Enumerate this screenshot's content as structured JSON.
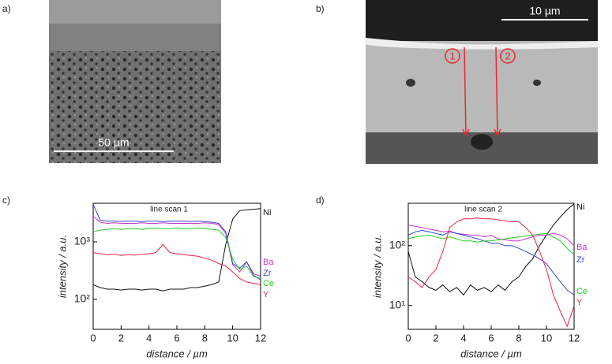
{
  "panels": {
    "a": {
      "label": "a)",
      "scale_bar": "50 µm"
    },
    "b": {
      "label": "b)",
      "scale_bar": "10 µm",
      "markers": [
        "1",
        "2"
      ]
    }
  },
  "chart_data": [
    {
      "type": "line",
      "panel_label": "c)",
      "title": "line scan 1",
      "x_label": "distance / µm",
      "y_label": "intensity / a.u.",
      "log_y": true,
      "x": [
        0,
        0.5,
        1,
        1.5,
        2,
        2.5,
        3,
        3.5,
        4,
        4.5,
        5,
        5.5,
        6,
        6.5,
        7,
        7.5,
        8,
        8.5,
        9,
        9.5,
        10,
        10.5,
        11,
        11.5,
        12
      ],
      "xlim": [
        0,
        12
      ],
      "xticks": [
        0,
        2,
        4,
        6,
        8,
        10,
        12
      ],
      "ylim": [
        30,
        4700
      ],
      "yticks": [
        {
          "value": 100,
          "label": "10²"
        },
        {
          "value": 1000,
          "label": "10³"
        }
      ],
      "series": [
        {
          "name": "Ni",
          "color": "#111111",
          "values": [
            180,
            160,
            150,
            150,
            145,
            150,
            150,
            145,
            150,
            150,
            140,
            150,
            150,
            150,
            160,
            160,
            170,
            180,
            200,
            900,
            2500,
            3500,
            3600,
            3700,
            3800
          ]
        },
        {
          "name": "Ba",
          "color": "#cc33cc",
          "values": [
            2800,
            2200,
            2100,
            2150,
            2100,
            2100,
            2100,
            2150,
            2100,
            2100,
            2150,
            2100,
            2100,
            2100,
            2100,
            2100,
            2150,
            2100,
            2000,
            1400,
            400,
            300,
            450,
            280,
            250
          ]
        },
        {
          "name": "Zr",
          "color": "#3344cc",
          "values": [
            4500,
            2400,
            2300,
            2300,
            2250,
            2300,
            2300,
            2250,
            2300,
            2300,
            2250,
            2300,
            2300,
            2300,
            2250,
            2300,
            2250,
            2200,
            2100,
            1500,
            420,
            350,
            450,
            260,
            220
          ]
        },
        {
          "name": "Ce",
          "color": "#22cc22",
          "values": [
            1500,
            1600,
            1650,
            1700,
            1650,
            1700,
            1700,
            1650,
            1700,
            1750,
            1700,
            1700,
            1750,
            1700,
            1700,
            1750,
            1700,
            1650,
            1600,
            1200,
            500,
            330,
            380,
            250,
            230
          ]
        },
        {
          "name": "Y",
          "color": "#ee2244",
          "values": [
            650,
            620,
            600,
            610,
            580,
            600,
            590,
            610,
            620,
            650,
            900,
            650,
            620,
            600,
            580,
            560,
            520,
            480,
            420,
            380,
            300,
            230,
            200,
            190,
            180
          ]
        }
      ]
    },
    {
      "type": "line",
      "panel_label": "d)",
      "title": "line scan 2",
      "x_label": "distance / µm",
      "y_label": "intensity / a.u.",
      "log_y": true,
      "x": [
        0,
        0.5,
        1,
        1.5,
        2,
        2.5,
        3,
        3.5,
        4,
        4.5,
        5,
        5.5,
        6,
        6.5,
        7,
        7.5,
        8,
        8.5,
        9,
        9.5,
        10,
        10.5,
        11,
        11.5,
        12
      ],
      "xlim": [
        0,
        12
      ],
      "xticks": [
        0,
        2,
        4,
        6,
        8,
        10,
        12
      ],
      "ylim": [
        4,
        510
      ],
      "yticks": [
        {
          "value": 10,
          "label": "10¹"
        },
        {
          "value": 100,
          "label": "10²"
        }
      ],
      "series": [
        {
          "name": "Ni",
          "color": "#111111",
          "values": [
            80,
            30,
            25,
            20,
            18,
            22,
            17,
            20,
            15,
            22,
            18,
            20,
            17,
            22,
            18,
            25,
            30,
            45,
            60,
            100,
            150,
            220,
            300,
            400,
            500
          ]
        },
        {
          "name": "Ba",
          "color": "#cc33cc",
          "values": [
            220,
            210,
            200,
            190,
            180,
            170,
            175,
            160,
            155,
            150,
            150,
            140,
            150,
            130,
            125,
            120,
            120,
            130,
            140,
            150,
            150,
            160,
            150,
            130,
            100
          ]
        },
        {
          "name": "Zr",
          "color": "#3344cc",
          "values": [
            150,
            170,
            180,
            170,
            160,
            150,
            170,
            160,
            150,
            140,
            130,
            120,
            110,
            110,
            100,
            100,
            90,
            80,
            70,
            60,
            50,
            35,
            25,
            18,
            15
          ]
        },
        {
          "name": "Ce",
          "color": "#22cc22",
          "values": [
            130,
            140,
            145,
            150,
            140,
            130,
            140,
            130,
            120,
            120,
            115,
            120,
            120,
            125,
            130,
            135,
            140,
            145,
            150,
            155,
            160,
            140,
            120,
            90,
            70
          ]
        },
        {
          "name": "Y",
          "color": "#ee2244",
          "values": [
            30,
            25,
            20,
            30,
            40,
            80,
            200,
            250,
            280,
            280,
            290,
            280,
            280,
            270,
            260,
            250,
            250,
            200,
            150,
            80,
            40,
            15,
            8,
            4.5,
            10
          ]
        }
      ]
    }
  ]
}
